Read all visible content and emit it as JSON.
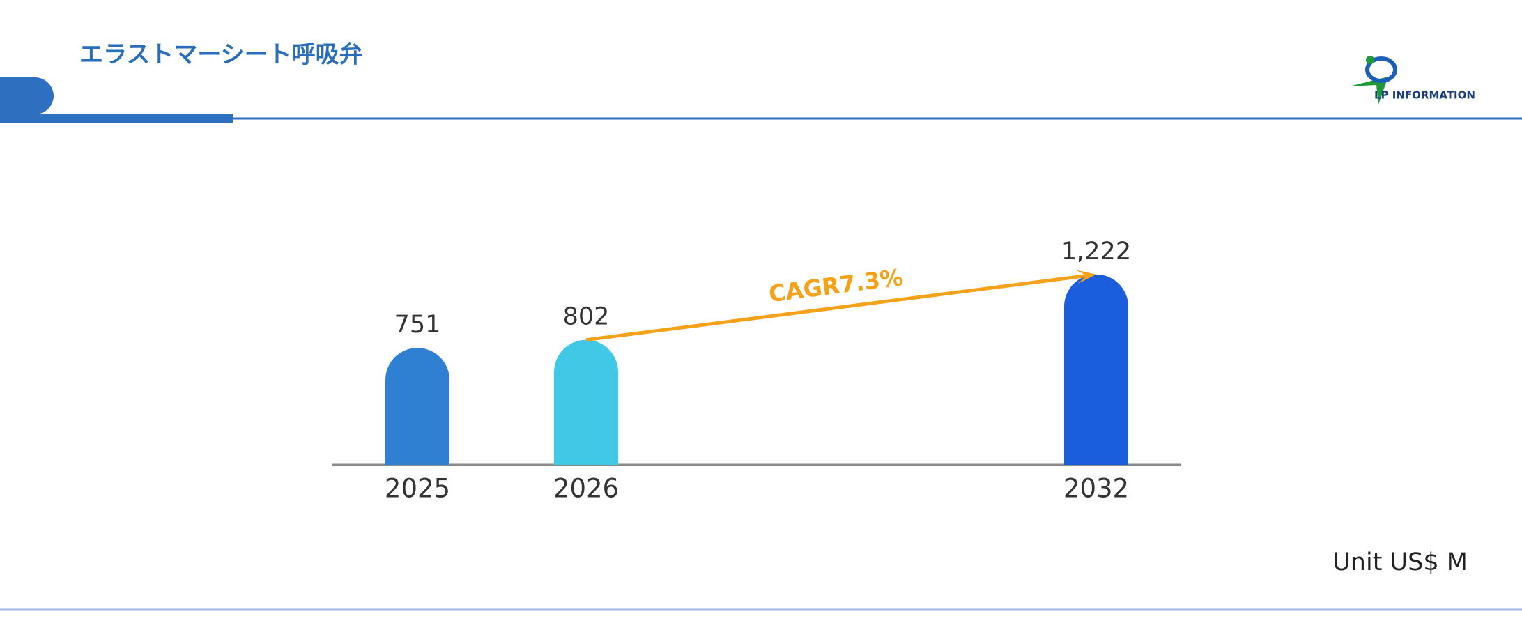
{
  "logo": "LP INFORMATION",
  "chart_data": {
    "type": "bar",
    "title": "エラストマーシート呼吸弁",
    "categories": [
      "2025",
      "2026",
      "2032"
    ],
    "values": [
      751,
      802,
      1222
    ],
    "value_labels": [
      "751",
      "802",
      "1,222"
    ],
    "colors": [
      "#2f7fd3",
      "#40c8e6",
      "#1a5ede"
    ],
    "annotation": "CAGR7.3%",
    "unit": "Unit US$ M"
  }
}
